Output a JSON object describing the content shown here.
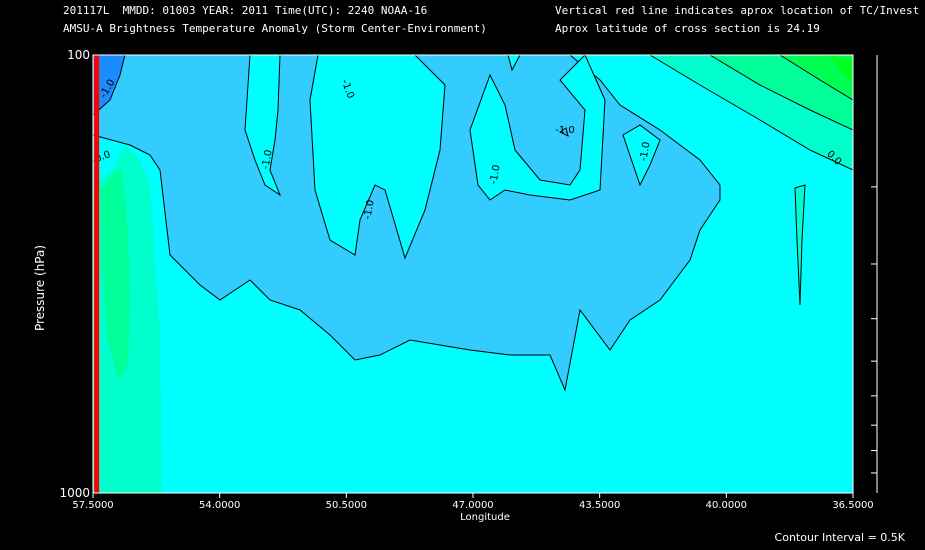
{
  "header": {
    "line1_left": "201117L  MMDD: 01003 YEAR: 2011 Time(UTC): 2240 NOAA-16",
    "line2_left": "AMSU-A Brightness Temperature Anomaly (Storm Center-Environment)",
    "line1_right": "Vertical red line indicates aprox location of TC/Invest",
    "line2_right": "Aprox latitude of cross section is 24.19"
  },
  "footer": {
    "contour_interval": "Contour Interval = 0.5K"
  },
  "colors": {
    "background": "#000000",
    "level_neg15": "#1a8cff",
    "level_neg10": "#2fb3ff",
    "level_neg05": "#33ccff",
    "level_0": "#00ffff",
    "level_05": "#00ffcc",
    "level_10": "#00ff66",
    "level_15": "#00ff22",
    "tc_line": "#ff0000"
  },
  "chart_data": {
    "type": "contour",
    "xlabel": "Longitude",
    "ylabel": "Pressure (hPa)",
    "xlim": [
      57.5,
      36.5
    ],
    "ylim": [
      1000,
      100
    ],
    "y_scale": "log",
    "x_ticks": [
      "57.5000",
      "54.0000",
      "50.5000",
      "47.0000",
      "43.5000",
      "40.0000",
      "36.5000"
    ],
    "y_ticks": [
      "100",
      "1000"
    ],
    "tc_longitude": 57.4,
    "contour_labels": [
      "-1.0",
      "-0.0",
      "-1.0",
      "-1.0",
      "-1.0",
      "-1.0",
      "-1.0",
      "-1.0",
      "0.0"
    ],
    "contour_interval": 0.5
  }
}
